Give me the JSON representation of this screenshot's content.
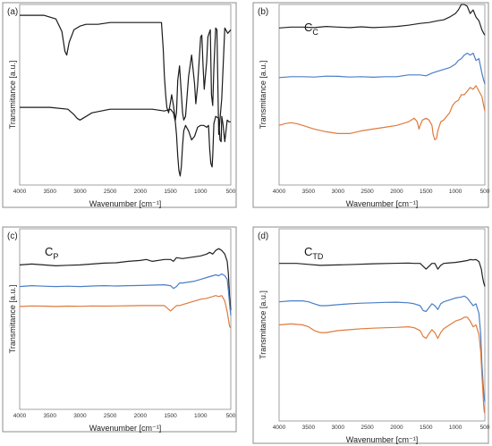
{
  "chart_data": [
    {
      "panel": "(a)",
      "type": "line",
      "xlabel": "Wavenumber [cm⁻¹]",
      "ylabel": "Transmitance [a.u.]",
      "xlim": [
        4000,
        500
      ],
      "xticks": [
        4000,
        3500,
        3000,
        2500,
        2000,
        1500,
        1000,
        500
      ],
      "ylim": [
        0,
        1
      ],
      "annotation": null,
      "series": [
        {
          "color": "#1a1a1a",
          "x": [
            4000,
            3600,
            3400,
            3300,
            3250,
            3220,
            3180,
            3100,
            3000,
            2900,
            2700,
            2500,
            2300,
            2100,
            1900,
            1750,
            1650,
            1620,
            1600,
            1580,
            1560,
            1530,
            1500,
            1480,
            1450,
            1420,
            1400,
            1380,
            1350,
            1300,
            1280,
            1250,
            1200,
            1150,
            1100,
            1080,
            1050,
            1000,
            980,
            960,
            940,
            900,
            880,
            860,
            840,
            820,
            800,
            780,
            750,
            730,
            700,
            650,
            600,
            550,
            500
          ],
          "y": [
            0.94,
            0.94,
            0.92,
            0.85,
            0.74,
            0.72,
            0.79,
            0.86,
            0.88,
            0.89,
            0.89,
            0.9,
            0.9,
            0.9,
            0.9,
            0.9,
            0.9,
            0.75,
            0.6,
            0.5,
            0.43,
            0.4,
            0.46,
            0.5,
            0.44,
            0.36,
            0.4,
            0.58,
            0.66,
            0.4,
            0.36,
            0.38,
            0.6,
            0.72,
            0.56,
            0.45,
            0.55,
            0.82,
            0.83,
            0.66,
            0.53,
            0.68,
            0.82,
            0.84,
            0.86,
            0.5,
            0.44,
            0.65,
            0.87,
            0.86,
            0.28,
            0.48,
            0.87,
            0.84,
            0.86
          ]
        },
        {
          "color": "#1a1a1a",
          "x": [
            4000,
            3500,
            3200,
            3100,
            3050,
            3000,
            2950,
            2800,
            2500,
            2000,
            1800,
            1600,
            1500,
            1450,
            1420,
            1400,
            1380,
            1360,
            1340,
            1320,
            1300,
            1280,
            1250,
            1200,
            1150,
            1100,
            1050,
            1000,
            950,
            900,
            870,
            850,
            830,
            810,
            800,
            780,
            750,
            700,
            680,
            660,
            650,
            630,
            600,
            560,
            530,
            500
          ],
          "y": [
            0.43,
            0.43,
            0.42,
            0.39,
            0.37,
            0.36,
            0.37,
            0.4,
            0.42,
            0.42,
            0.42,
            0.41,
            0.42,
            0.4,
            0.35,
            0.28,
            0.16,
            0.08,
            0.05,
            0.1,
            0.22,
            0.3,
            0.33,
            0.3,
            0.25,
            0.27,
            0.32,
            0.33,
            0.33,
            0.32,
            0.33,
            0.2,
            0.12,
            0.1,
            0.16,
            0.34,
            0.38,
            0.37,
            0.25,
            0.24,
            0.38,
            0.34,
            0.24,
            0.36,
            0.35,
            0.35
          ]
        }
      ]
    },
    {
      "panel": "(b)",
      "type": "line",
      "xlabel": "Wavenumber [cm⁻¹]",
      "ylabel": "Transmitance [a.u.]",
      "xlim": [
        4000,
        500
      ],
      "xticks": [
        4000,
        3500,
        3000,
        2500,
        2000,
        1500,
        1000,
        500
      ],
      "ylim": [
        0,
        1
      ],
      "annotation": {
        "main": "C",
        "sub": "C"
      },
      "series": [
        {
          "color": "#222222",
          "x": [
            4000,
            3800,
            3600,
            3400,
            3200,
            3000,
            2800,
            2600,
            2400,
            2200,
            2000,
            1800,
            1600,
            1450,
            1300,
            1200,
            1100,
            1000,
            950,
            900,
            850,
            800,
            750,
            700,
            650,
            600,
            550,
            520,
            500
          ],
          "y": [
            0.87,
            0.875,
            0.875,
            0.872,
            0.878,
            0.875,
            0.872,
            0.876,
            0.872,
            0.875,
            0.878,
            0.885,
            0.895,
            0.9,
            0.91,
            0.915,
            0.93,
            0.95,
            0.97,
            1.0,
            1.0,
            0.99,
            0.95,
            0.97,
            0.93,
            0.91,
            0.86,
            0.84,
            0.83
          ]
        },
        {
          "color": "#4a7ec8",
          "x": [
            4000,
            3800,
            3600,
            3400,
            3200,
            3000,
            2800,
            2600,
            2400,
            2200,
            2000,
            1800,
            1600,
            1500,
            1400,
            1300,
            1200,
            1100,
            1000,
            950,
            900,
            850,
            800,
            750,
            700,
            650,
            600,
            550,
            520,
            500
          ],
          "y": [
            0.595,
            0.6,
            0.6,
            0.598,
            0.603,
            0.602,
            0.598,
            0.6,
            0.597,
            0.6,
            0.6,
            0.61,
            0.61,
            0.605,
            0.62,
            0.63,
            0.64,
            0.65,
            0.67,
            0.69,
            0.7,
            0.72,
            0.73,
            0.72,
            0.73,
            0.69,
            0.7,
            0.62,
            0.58,
            0.56
          ]
        },
        {
          "color": "#e07a3c",
          "x": [
            4000,
            3900,
            3800,
            3700,
            3600,
            3400,
            3200,
            3000,
            2800,
            2600,
            2400,
            2200,
            2000,
            1800,
            1700,
            1650,
            1620,
            1600,
            1560,
            1500,
            1450,
            1400,
            1380,
            1350,
            1320,
            1300,
            1250,
            1200,
            1150,
            1100,
            1050,
            1000,
            950,
            900,
            850,
            800,
            750,
            700,
            650,
            600,
            550,
            520,
            500
          ],
          "y": [
            0.33,
            0.34,
            0.345,
            0.34,
            0.33,
            0.31,
            0.295,
            0.285,
            0.285,
            0.3,
            0.31,
            0.32,
            0.33,
            0.35,
            0.37,
            0.35,
            0.31,
            0.33,
            0.36,
            0.37,
            0.36,
            0.33,
            0.28,
            0.25,
            0.26,
            0.3,
            0.35,
            0.36,
            0.38,
            0.4,
            0.44,
            0.46,
            0.47,
            0.5,
            0.5,
            0.52,
            0.54,
            0.53,
            0.55,
            0.52,
            0.49,
            0.44,
            0.41
          ]
        }
      ]
    },
    {
      "panel": "(c)",
      "type": "line",
      "xlabel": "Wavenumber [cm⁻¹]",
      "ylabel": "Transmitance [a.u.]",
      "xlim": [
        4000,
        500
      ],
      "xticks": [
        4000,
        3500,
        3000,
        2500,
        2000,
        1500,
        1000,
        500
      ],
      "ylim": [
        0,
        1
      ],
      "annotation": {
        "main": "C",
        "sub": "P"
      },
      "series": [
        {
          "color": "#222222",
          "x": [
            4000,
            3800,
            3600,
            3400,
            3200,
            3000,
            2800,
            2600,
            2400,
            2200,
            2000,
            1900,
            1800,
            1600,
            1500,
            1450,
            1400,
            1300,
            1200,
            1100,
            1000,
            900,
            850,
            800,
            750,
            700,
            650,
            600,
            560,
            540,
            520,
            500
          ],
          "y": [
            0.8,
            0.805,
            0.8,
            0.795,
            0.798,
            0.8,
            0.805,
            0.81,
            0.812,
            0.82,
            0.825,
            0.83,
            0.82,
            0.83,
            0.83,
            0.82,
            0.84,
            0.835,
            0.84,
            0.845,
            0.85,
            0.86,
            0.87,
            0.86,
            0.88,
            0.89,
            0.88,
            0.86,
            0.82,
            0.75,
            0.62,
            0.55
          ]
        },
        {
          "color": "#4a7ec8",
          "x": [
            4000,
            3800,
            3600,
            3400,
            3200,
            3000,
            2800,
            2600,
            2400,
            2200,
            2000,
            1800,
            1600,
            1500,
            1450,
            1400,
            1350,
            1300,
            1200,
            1100,
            1000,
            900,
            800,
            750,
            700,
            650,
            600,
            560,
            540,
            520,
            500
          ],
          "y": [
            0.68,
            0.685,
            0.682,
            0.68,
            0.682,
            0.68,
            0.683,
            0.685,
            0.683,
            0.685,
            0.686,
            0.688,
            0.69,
            0.685,
            0.67,
            0.68,
            0.7,
            0.7,
            0.705,
            0.71,
            0.72,
            0.73,
            0.74,
            0.745,
            0.74,
            0.75,
            0.74,
            0.72,
            0.66,
            0.58,
            0.52
          ]
        },
        {
          "color": "#e07a3c",
          "x": [
            4000,
            3800,
            3600,
            3400,
            3200,
            3000,
            2800,
            2600,
            2400,
            2200,
            2000,
            1800,
            1600,
            1550,
            1500,
            1450,
            1400,
            1350,
            1300,
            1200,
            1100,
            1000,
            900,
            800,
            750,
            700,
            650,
            600,
            560,
            540,
            520,
            500
          ],
          "y": [
            0.57,
            0.573,
            0.572,
            0.57,
            0.572,
            0.571,
            0.573,
            0.572,
            0.573,
            0.574,
            0.575,
            0.575,
            0.575,
            0.56,
            0.545,
            0.56,
            0.575,
            0.575,
            0.58,
            0.59,
            0.6,
            0.61,
            0.615,
            0.625,
            0.63,
            0.625,
            0.63,
            0.6,
            0.54,
            0.5,
            0.46,
            0.45
          ]
        }
      ]
    },
    {
      "panel": "(d)",
      "type": "line",
      "xlabel": "Wavenumber [cm⁻¹]",
      "ylabel": "Transmitance [a.u.]",
      "xlim": [
        4000,
        500
      ],
      "xticks": [
        4000,
        3500,
        3000,
        2500,
        2000,
        1500,
        1000,
        500
      ],
      "ylim": [
        0,
        1
      ],
      "annotation": {
        "main": "C",
        "sub": "TD"
      },
      "series": [
        {
          "color": "#222222",
          "x": [
            4000,
            3700,
            3500,
            3300,
            3000,
            2700,
            2400,
            2100,
            1800,
            1700,
            1600,
            1550,
            1500,
            1450,
            1400,
            1350,
            1300,
            1250,
            1200,
            1100,
            1000,
            900,
            800,
            750,
            700,
            650,
            600,
            560,
            540,
            520,
            500
          ],
          "y": [
            0.82,
            0.82,
            0.815,
            0.81,
            0.812,
            0.815,
            0.818,
            0.82,
            0.822,
            0.82,
            0.82,
            0.805,
            0.79,
            0.805,
            0.82,
            0.82,
            0.79,
            0.81,
            0.82,
            0.823,
            0.825,
            0.83,
            0.835,
            0.84,
            0.838,
            0.84,
            0.83,
            0.79,
            0.75,
            0.72,
            0.7
          ]
        },
        {
          "color": "#4a7ec8",
          "x": [
            4000,
            3800,
            3600,
            3500,
            3400,
            3300,
            3200,
            3000,
            2800,
            2600,
            2400,
            2200,
            2000,
            1800,
            1700,
            1600,
            1550,
            1500,
            1450,
            1400,
            1350,
            1300,
            1250,
            1200,
            1100,
            1000,
            900,
            850,
            800,
            750,
            700,
            650,
            600,
            570,
            550,
            530,
            520,
            510,
            500
          ],
          "y": [
            0.62,
            0.625,
            0.625,
            0.62,
            0.61,
            0.6,
            0.6,
            0.605,
            0.61,
            0.613,
            0.615,
            0.617,
            0.618,
            0.615,
            0.61,
            0.6,
            0.575,
            0.57,
            0.59,
            0.61,
            0.6,
            0.58,
            0.61,
            0.62,
            0.63,
            0.64,
            0.645,
            0.65,
            0.64,
            0.62,
            0.6,
            0.61,
            0.56,
            0.45,
            0.3,
            0.2,
            0.15,
            0.12,
            0.1
          ]
        },
        {
          "color": "#e07a3c",
          "x": [
            4000,
            3800,
            3600,
            3500,
            3400,
            3300,
            3200,
            3000,
            2800,
            2600,
            2400,
            2200,
            2000,
            1800,
            1700,
            1600,
            1550,
            1500,
            1450,
            1400,
            1350,
            1300,
            1250,
            1200,
            1100,
            1000,
            900,
            850,
            800,
            750,
            700,
            650,
            600,
            570,
            550,
            530,
            520,
            510,
            500
          ],
          "y": [
            0.5,
            0.505,
            0.5,
            0.49,
            0.47,
            0.46,
            0.46,
            0.47,
            0.475,
            0.48,
            0.483,
            0.485,
            0.487,
            0.49,
            0.485,
            0.47,
            0.44,
            0.43,
            0.455,
            0.475,
            0.46,
            0.43,
            0.46,
            0.48,
            0.5,
            0.52,
            0.53,
            0.54,
            0.54,
            0.52,
            0.49,
            0.5,
            0.45,
            0.36,
            0.24,
            0.14,
            0.08,
            0.05,
            0.04
          ]
        }
      ]
    }
  ]
}
